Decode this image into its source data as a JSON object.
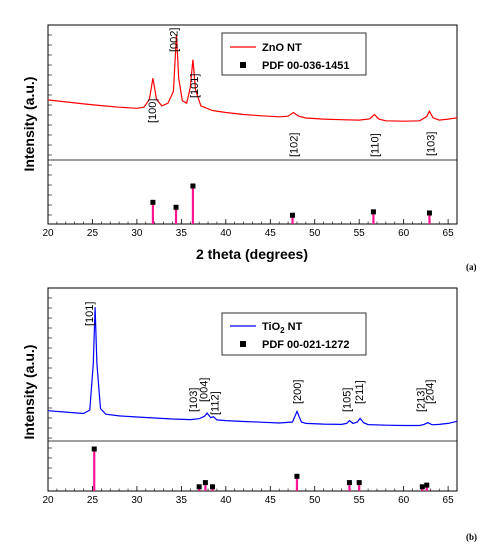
{
  "chart_data": [
    {
      "panel_label": "(a)",
      "type": "line",
      "xlabel": "2 theta (degrees)",
      "ylabel": "Intensity (a.u.)",
      "xlim": [
        20,
        66
      ],
      "x_ticks": [
        "20",
        "25",
        "30",
        "35",
        "40",
        "45",
        "50",
        "55",
        "60",
        "65"
      ],
      "ylim": [
        0,
        1
      ],
      "y_tick_labels": "none",
      "series": [
        {
          "name": "ZnO NT",
          "color": "#ff0000",
          "x": [
            20,
            22,
            24,
            26,
            28,
            30,
            30.8,
            31.4,
            31.8,
            32.2,
            32.8,
            33.5,
            34.1,
            34.45,
            34.7,
            35.1,
            35.6,
            36.0,
            36.3,
            36.6,
            37.2,
            38.5,
            40,
            42,
            44,
            46,
            47.0,
            47.6,
            48.2,
            49,
            51,
            53,
            55,
            56.2,
            56.7,
            57.2,
            58,
            60,
            61.8,
            62.6,
            62.9,
            63.3,
            64,
            65,
            66
          ],
          "y": [
            0.455,
            0.44,
            0.425,
            0.412,
            0.4,
            0.392,
            0.4,
            0.46,
            0.62,
            0.46,
            0.41,
            0.43,
            0.52,
            0.95,
            0.62,
            0.45,
            0.43,
            0.55,
            0.76,
            0.53,
            0.41,
            0.375,
            0.36,
            0.345,
            0.335,
            0.327,
            0.332,
            0.36,
            0.332,
            0.318,
            0.31,
            0.305,
            0.302,
            0.312,
            0.345,
            0.31,
            0.297,
            0.294,
            0.297,
            0.33,
            0.37,
            0.32,
            0.302,
            0.31,
            0.32
          ]
        }
      ],
      "reference": {
        "name": "PDF 00-036-1451",
        "color": "#ff1493",
        "positions": [
          31.8,
          34.4,
          36.3,
          47.5,
          56.6,
          62.9
        ],
        "intensities": [
          0.57,
          0.44,
          1.0,
          0.23,
          0.32,
          0.29
        ]
      },
      "annotations": [
        {
          "text": "[100]",
          "x": 31.7
        },
        {
          "text": "[002]",
          "x": 34.1
        },
        {
          "text": "[101]",
          "x": 36.4
        },
        {
          "text": "[102]",
          "x": 47.6
        },
        {
          "text": "[110]",
          "x": 56.7
        },
        {
          "text": "[103]",
          "x": 63.0
        }
      ],
      "legend_position": "top-right"
    },
    {
      "panel_label": "(b)",
      "type": "line",
      "xlabel": "",
      "ylabel": "Intensity (a.u.)",
      "xlim": [
        20,
        66
      ],
      "x_ticks": [
        "20",
        "25",
        "30",
        "35",
        "40",
        "45",
        "50",
        "55",
        "60",
        "65"
      ],
      "ylim": [
        0,
        1
      ],
      "y_tick_labels": "none",
      "series": [
        {
          "name": "TiO2 NT",
          "name_base": "TiO",
          "name_sub": "2",
          "name_rest": " NT",
          "color": "#0000ff",
          "x": [
            20,
            22,
            24,
            24.7,
            25.1,
            25.3,
            25.5,
            25.9,
            26.5,
            28,
            30,
            32,
            34,
            36,
            37.0,
            37.6,
            37.9,
            38.3,
            38.6,
            39,
            40,
            42,
            44,
            46,
            47.5,
            48.0,
            48.5,
            49,
            51,
            53,
            53.6,
            53.9,
            54.3,
            54.8,
            55.1,
            55.5,
            56,
            58,
            60,
            61.8,
            62.3,
            62.7,
            63.2,
            64,
            65,
            66
          ],
          "y": [
            0.215,
            0.205,
            0.195,
            0.22,
            0.55,
            0.95,
            0.55,
            0.23,
            0.19,
            0.178,
            0.17,
            0.163,
            0.156,
            0.152,
            0.158,
            0.175,
            0.198,
            0.165,
            0.172,
            0.15,
            0.145,
            0.138,
            0.133,
            0.128,
            0.135,
            0.21,
            0.135,
            0.125,
            0.12,
            0.118,
            0.125,
            0.145,
            0.125,
            0.135,
            0.16,
            0.13,
            0.116,
            0.112,
            0.11,
            0.11,
            0.118,
            0.13,
            0.115,
            0.118,
            0.125,
            0.14
          ]
        }
      ],
      "reference": {
        "name": "PDF 00-021-1272",
        "color": "#ff1493",
        "positions": [
          25.2,
          37.0,
          37.7,
          38.5,
          48.0,
          53.9,
          55.0,
          62.1,
          62.6
        ],
        "intensities": [
          1.0,
          0.1,
          0.2,
          0.1,
          0.35,
          0.2,
          0.2,
          0.1,
          0.14
        ]
      },
      "annotations": [
        {
          "text": "[101]",
          "x": 24.6
        },
        {
          "text": "[103]",
          "x": 36.3
        },
        {
          "text": "[004]",
          "x": 37.5
        },
        {
          "text": "[112]",
          "x": 38.7
        },
        {
          "text": "[200]",
          "x": 48.0
        },
        {
          "text": "[105]",
          "x": 53.6
        },
        {
          "text": "[211]",
          "x": 55.0
        },
        {
          "text": "[213]",
          "x": 61.9
        },
        {
          "text": "[204]",
          "x": 62.9
        }
      ],
      "legend_position": "top-right"
    }
  ]
}
